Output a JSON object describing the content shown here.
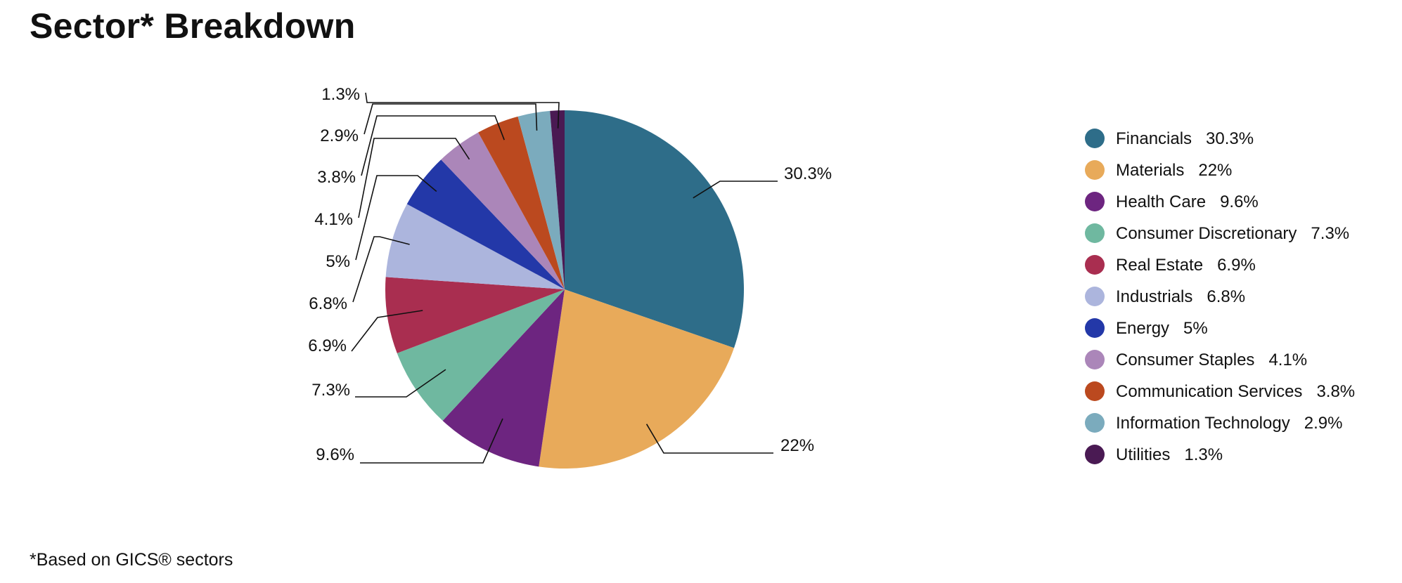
{
  "title": "Sector* Breakdown",
  "footnote": "*Based on GICS® sectors",
  "chart_data": {
    "type": "pie",
    "title": "Sector* Breakdown",
    "legend": "right",
    "categories": [
      "Financials",
      "Materials",
      "Health Care",
      "Consumer Discretionary",
      "Real Estate",
      "Industrials",
      "Energy",
      "Consumer Staples",
      "Communication Services",
      "Information Technology",
      "Utilities"
    ],
    "values": [
      30.3,
      22,
      9.6,
      7.3,
      6.9,
      6.8,
      5,
      4.1,
      3.8,
      2.9,
      1.3
    ],
    "labels": [
      "30.3%",
      "22%",
      "9.6%",
      "7.3%",
      "6.9%",
      "6.8%",
      "5%",
      "4.1%",
      "3.8%",
      "2.9%",
      "1.3%"
    ],
    "colors": [
      "#2e6d89",
      "#e8aa5a",
      "#6d2580",
      "#6fb8a0",
      "#a92e50",
      "#acb5dd",
      "#2338a8",
      "#ab86b9",
      "#bb491f",
      "#7babbd",
      "#4a1a53"
    ]
  }
}
